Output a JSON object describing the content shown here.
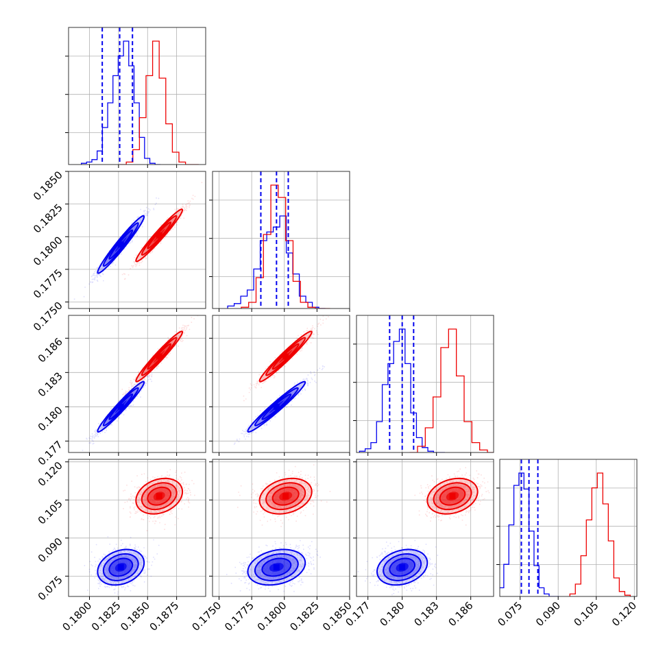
{
  "chart_data": {
    "type": "corner",
    "grid": true,
    "parameters": 4,
    "series_colors": [
      "#0000ee",
      "#ee0000"
    ],
    "axis_ranges": [
      [
        0.1782,
        0.19
      ],
      [
        0.1745,
        0.185
      ],
      [
        0.176,
        0.188
      ],
      [
        0.067,
        0.121
      ]
    ],
    "tick_labels": {
      "p1": [
        "0.1800",
        "0.1825",
        "0.1850",
        "0.1875"
      ],
      "p2": [
        "0.1750",
        "0.1775",
        "0.1800",
        "0.1825",
        "0.1850"
      ],
      "p3": [
        "0.177",
        "0.180",
        "0.183",
        "0.186"
      ],
      "p4": [
        "0.075",
        "0.090",
        "0.105",
        "0.120"
      ]
    },
    "tick_values": {
      "p1": [
        0.18,
        0.1825,
        0.185,
        0.1875
      ],
      "p2": [
        0.175,
        0.1775,
        0.18,
        0.1825,
        0.185
      ],
      "p3": [
        0.177,
        0.18,
        0.183,
        0.186
      ],
      "p4": [
        0.075,
        0.09,
        0.105,
        0.12
      ]
    },
    "quantile_lines": [
      [
        0.1811,
        0.1826,
        0.1837
      ],
      [
        0.1782,
        0.1794,
        0.1803
      ],
      [
        0.1789,
        0.18,
        0.181
      ],
      [
        0.0755,
        0.0785,
        0.082
      ]
    ],
    "series": [
      {
        "color": "#0000ee",
        "mean": [
          0.1827,
          0.1794,
          0.18,
          0.0785
        ],
        "std": [
          0.001,
          0.0011,
          0.0011,
          0.0035
        ],
        "corr": {
          "0-1": 0.97,
          "0-2": 0.97,
          "0-3": 0.25,
          "1-2": 0.97,
          "1-3": 0.25,
          "2-3": 0.25
        },
        "histograms": [
          [
            0.01,
            0.02,
            0.04,
            0.11,
            0.3,
            0.5,
            0.72,
            0.88,
            1.0,
            0.8,
            0.5,
            0.22,
            0.05,
            0.01,
            0.0
          ],
          [
            0.02,
            0.04,
            0.1,
            0.15,
            0.32,
            0.55,
            0.62,
            0.66,
            0.75,
            0.45,
            0.28,
            0.1,
            0.05,
            0.01,
            0.0
          ],
          [
            0.01,
            0.03,
            0.08,
            0.25,
            0.55,
            0.72,
            0.9,
            1.0,
            0.72,
            0.32,
            0.12,
            0.04,
            0.01,
            0.0,
            0.0
          ],
          [
            0.07,
            0.26,
            0.58,
            0.9,
            1.0,
            0.87,
            0.53,
            0.25,
            0.07,
            0.02,
            0.0,
            0.0
          ]
        ]
      },
      {
        "color": "#ee0000",
        "mean": [
          0.186,
          0.1801,
          0.1844,
          0.1065
        ],
        "std": [
          0.001,
          0.001,
          0.0011,
          0.0035
        ],
        "corr": {
          "0-1": 0.97,
          "0-2": 0.97,
          "0-3": 0.25,
          "1-2": 0.97,
          "1-3": 0.25,
          "2-3": 0.25
        },
        "histograms": [
          [
            0.0,
            0.02,
            0.12,
            0.38,
            0.72,
            1.0,
            0.7,
            0.33,
            0.1,
            0.02,
            0.0,
            0.0
          ],
          [
            0.01,
            0.05,
            0.25,
            0.6,
            1.0,
            0.9,
            0.55,
            0.22,
            0.05,
            0.01,
            0.0,
            0.0
          ],
          [
            0.0,
            0.05,
            0.2,
            0.45,
            0.85,
            1.0,
            0.62,
            0.25,
            0.08,
            0.02,
            0.0
          ],
          [
            0.02,
            0.1,
            0.33,
            0.62,
            0.88,
            1.0,
            0.75,
            0.45,
            0.15,
            0.04,
            0.01
          ]
        ]
      }
    ]
  }
}
